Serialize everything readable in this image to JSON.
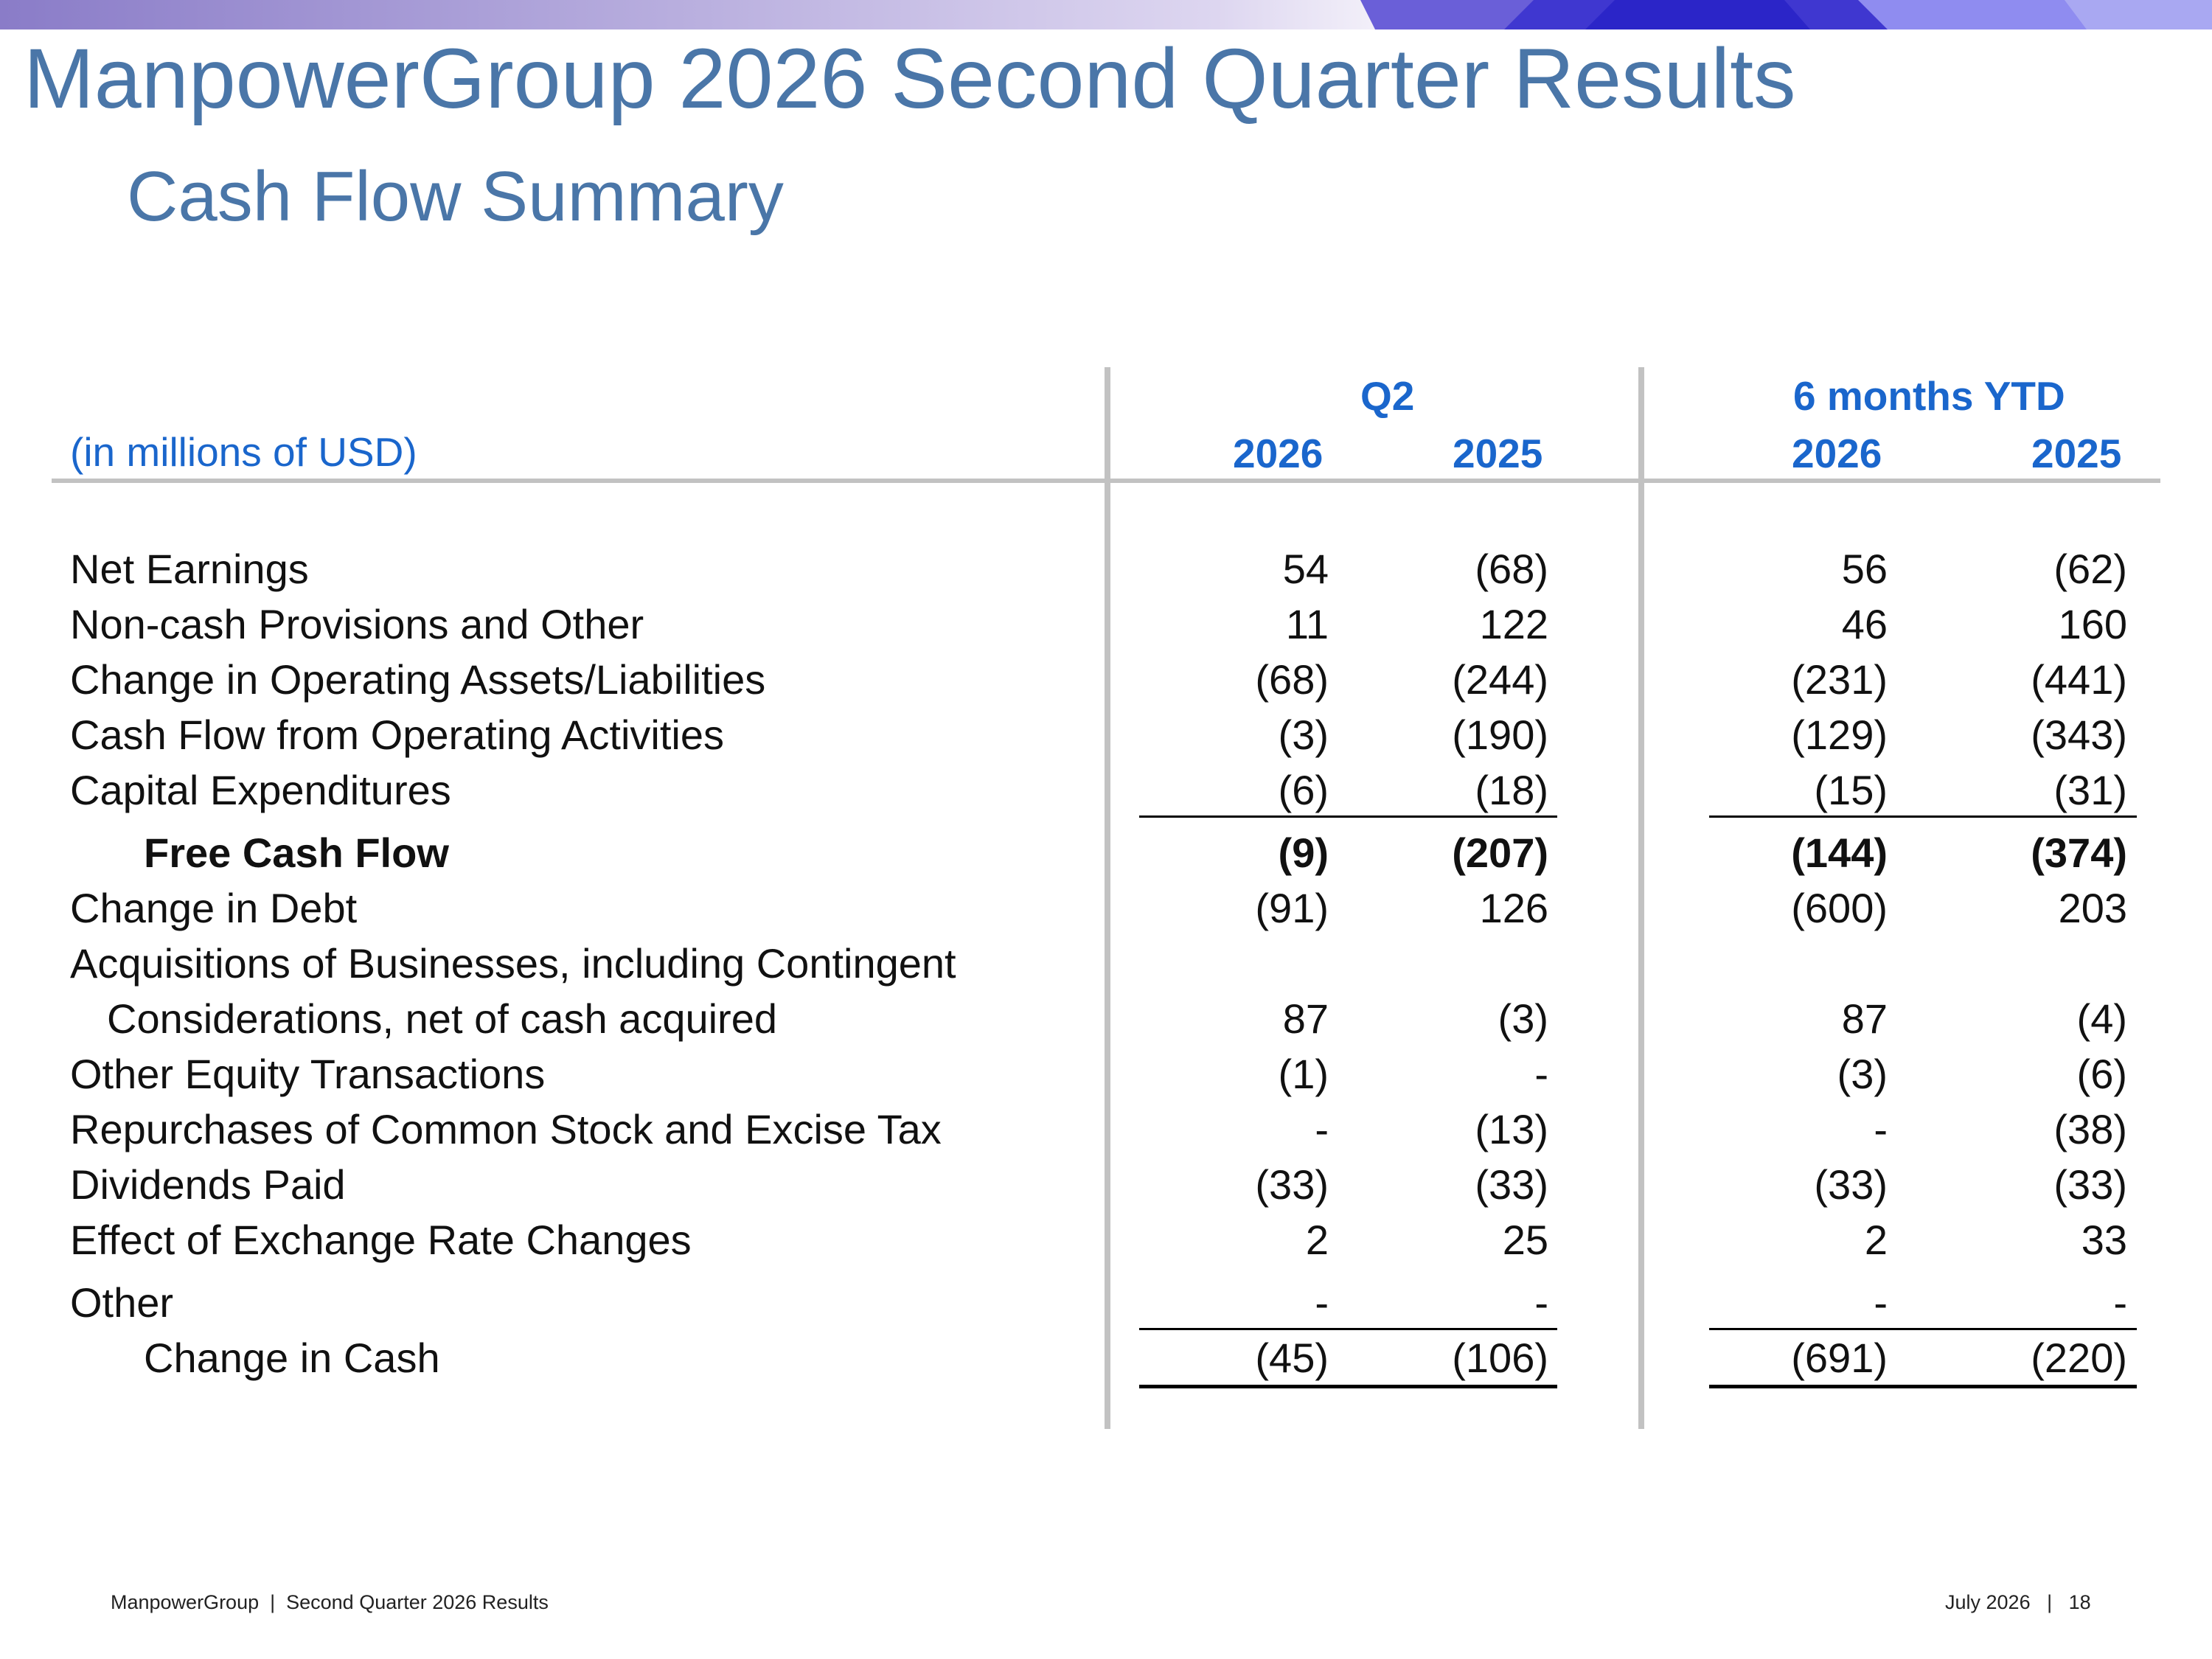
{
  "header": {
    "title": "ManpowerGroup 2026 Second Quarter Results",
    "subtitle": "Cash Flow Summary"
  },
  "table": {
    "units_label": "(in millions of USD)",
    "groups": [
      {
        "label": "Q2",
        "years": [
          "2026",
          "2025"
        ]
      },
      {
        "label": "6 months YTD",
        "years": [
          "2026",
          "2025"
        ]
      }
    ],
    "rows": [
      {
        "label": "Net Earnings",
        "q2_2026": "54",
        "q2_2025": "(68)",
        "ytd_2026": "56",
        "ytd_2025": "(62)"
      },
      {
        "label": "Non-cash Provisions and Other",
        "q2_2026": "11",
        "q2_2025": "122",
        "ytd_2026": "46",
        "ytd_2025": "160"
      },
      {
        "label": "Change in Operating Assets/Liabilities",
        "q2_2026": "(68)",
        "q2_2025": "(244)",
        "ytd_2026": "(231)",
        "ytd_2025": "(441)"
      },
      {
        "label": "Cash Flow from Operating Activities",
        "q2_2026": "(3)",
        "q2_2025": "(190)",
        "ytd_2026": "(129)",
        "ytd_2025": "(343)"
      },
      {
        "label": "Capital Expenditures",
        "q2_2026": "(6)",
        "q2_2025": "(18)",
        "ytd_2026": "(15)",
        "ytd_2025": "(31)"
      },
      {
        "label": "Free Cash Flow",
        "q2_2026": "(9)",
        "q2_2025": "(207)",
        "ytd_2026": "(144)",
        "ytd_2025": "(374)"
      },
      {
        "label": "Change in Debt",
        "q2_2026": "(91)",
        "q2_2025": "126",
        "ytd_2026": "(600)",
        "ytd_2025": "203"
      },
      {
        "label": "Acquisitions of Businesses, including Contingent",
        "q2_2026": "",
        "q2_2025": "",
        "ytd_2026": "",
        "ytd_2025": ""
      },
      {
        "label": "Considerations, net of cash acquired",
        "q2_2026": "87",
        "q2_2025": "(3)",
        "ytd_2026": "87",
        "ytd_2025": "(4)"
      },
      {
        "label": "Other Equity Transactions",
        "q2_2026": "(1)",
        "q2_2025": "-",
        "ytd_2026": "(3)",
        "ytd_2025": "(6)"
      },
      {
        "label": "Repurchases of Common Stock and Excise Tax",
        "q2_2026": "-",
        "q2_2025": "(13)",
        "ytd_2026": "-",
        "ytd_2025": "(38)"
      },
      {
        "label": "Dividends Paid",
        "q2_2026": "(33)",
        "q2_2025": "(33)",
        "ytd_2026": "(33)",
        "ytd_2025": "(33)"
      },
      {
        "label": "Effect of Exchange Rate Changes",
        "q2_2026": "2",
        "q2_2025": "25",
        "ytd_2026": "2",
        "ytd_2025": "33"
      },
      {
        "label": "Other",
        "q2_2026": "-",
        "q2_2025": "-",
        "ytd_2026": "-",
        "ytd_2025": "-"
      },
      {
        "label": "Change in Cash",
        "q2_2026": "(45)",
        "q2_2025": "(106)",
        "ytd_2026": "(691)",
        "ytd_2025": "(220)"
      }
    ]
  },
  "footer": {
    "left": "ManpowerGroup  |  Second Quarter 2026 Results",
    "right": "July 2026   |   18"
  }
}
